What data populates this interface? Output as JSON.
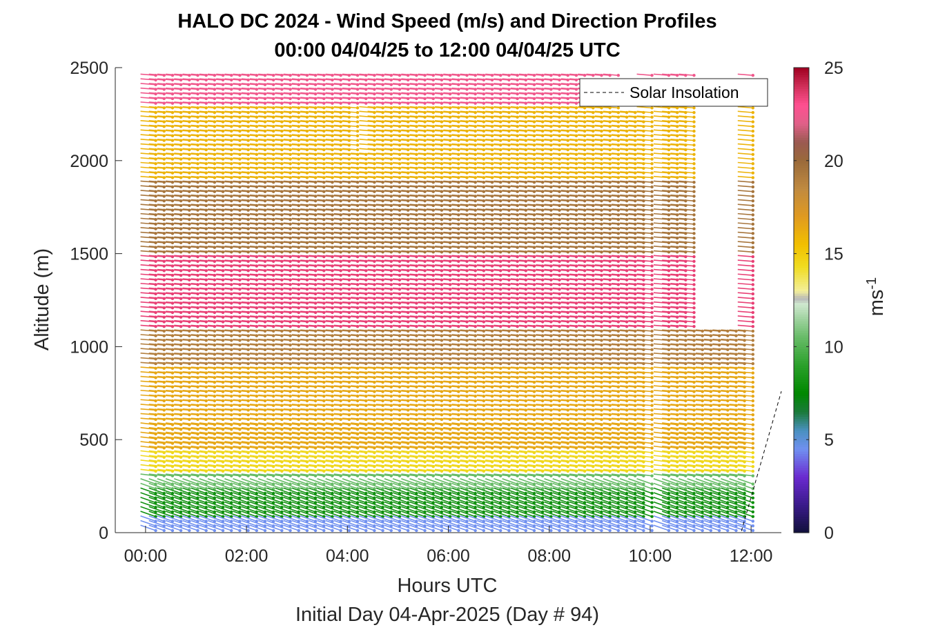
{
  "chart_data": {
    "type": "wind_barb_profile",
    "title": "HALO DC 2024 - Wind Speed (m/s) and Direction Profiles",
    "subtitle": "00:00 04/04/25 to 12:00 04/04/25  UTC",
    "xlabel": "Hours UTC",
    "xlabel2": "Initial Day 04-Apr-2025 (Day # 94)",
    "ylabel": "Altitude (m)",
    "xlim_hours": [
      -0.6,
      12.6
    ],
    "ylim": [
      0,
      2500
    ],
    "x_ticks": [
      0,
      2,
      4,
      6,
      8,
      10,
      12
    ],
    "x_tick_labels": [
      "00:00",
      "02:00",
      "04:00",
      "06:00",
      "08:00",
      "10:00",
      "12:00"
    ],
    "y_ticks": [
      0,
      500,
      1000,
      1500,
      2000,
      2500
    ],
    "y_tick_labels": [
      "0",
      "500",
      "1000",
      "1500",
      "2000",
      "2500"
    ],
    "colorbar": {
      "label": "ms",
      "label_exponent": "-1",
      "range": [
        0,
        25
      ],
      "ticks": [
        0,
        5,
        10,
        15,
        20,
        25
      ],
      "tick_labels": [
        "0",
        "5",
        "10",
        "15",
        "20",
        "25"
      ],
      "colors": [
        [
          0,
          "#10103a"
        ],
        [
          1.5,
          "#3a1a8a"
        ],
        [
          3,
          "#6a2ad0"
        ],
        [
          4.5,
          "#7090f0"
        ],
        [
          5.5,
          "#4a90c0"
        ],
        [
          6.5,
          "#1a7a3a"
        ],
        [
          7.5,
          "#008800"
        ],
        [
          9,
          "#2aa02a"
        ],
        [
          10.5,
          "#66bb66"
        ],
        [
          11.5,
          "#9fd29f"
        ],
        [
          12.3,
          "#cfe8cf"
        ],
        [
          12.6,
          "#b8b8b8"
        ],
        [
          13,
          "#f3ef9a"
        ],
        [
          14.3,
          "#f0dc20"
        ],
        [
          15.5,
          "#f2c000"
        ],
        [
          17,
          "#e09a20"
        ],
        [
          18.5,
          "#c08a40"
        ],
        [
          20,
          "#9a6a3a"
        ],
        [
          21,
          "#9a5a50"
        ],
        [
          22,
          "#e06088"
        ],
        [
          23,
          "#ff5090"
        ],
        [
          24,
          "#d0305a"
        ],
        [
          25,
          "#a00020"
        ]
      ]
    },
    "legend": {
      "label": "Solar Insolation",
      "location": "top-right"
    },
    "solar_insolation": {
      "hours": [
        -0.6,
        11.8,
        12.6
      ],
      "altitude_m": [
        0,
        0,
        760
      ]
    },
    "profiles": {
      "time_step_hours": 0.1667,
      "time_start_hours": -0.1,
      "time_end_hours": 11.8,
      "altitude_step_m": 25,
      "altitude_min_m": 40,
      "altitude_max_m": 2480,
      "data_gaps": [
        {
          "hours": [
            9.9,
            10.0
          ],
          "altitude_m": [
            0,
            2500
          ]
        },
        {
          "hours": [
            9.1,
            9.6
          ],
          "altitude_m": [
            2270,
            2500
          ]
        },
        {
          "hours": [
            10.6,
            11.7
          ],
          "altitude_m": [
            1100,
            2500
          ]
        },
        {
          "hours": [
            4.0,
            4.2
          ],
          "altitude_m": [
            2060,
            2300
          ]
        }
      ],
      "wind_speed_layers_ms": [
        {
          "altitude_m": [
            30,
            100
          ],
          "speed": 4.5
        },
        {
          "altitude_m": [
            100,
            250
          ],
          "speed": 8
        },
        {
          "altitude_m": [
            250,
            330
          ],
          "speed": 10.5
        },
        {
          "altitude_m": [
            330,
            450
          ],
          "speed": 14.5
        },
        {
          "altitude_m": [
            450,
            900
          ],
          "speed": 16.5
        },
        {
          "altitude_m": [
            900,
            1100
          ],
          "speed": 19
        },
        {
          "altitude_m": [
            1100,
            1500
          ],
          "speed": 23.5
        },
        {
          "altitude_m": [
            1500,
            1900
          ],
          "speed": 19.5
        },
        {
          "altitude_m": [
            1900,
            2300
          ],
          "speed": 16
        },
        {
          "altitude_m": [
            2300,
            2500
          ],
          "speed": 22.5
        }
      ]
    }
  }
}
